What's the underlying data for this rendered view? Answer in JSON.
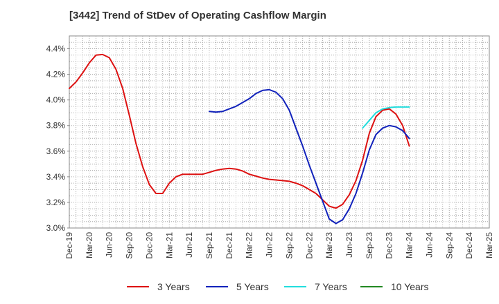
{
  "chart_data": {
    "type": "line",
    "title": "[3442]  Trend of StDev of Operating Cashflow Margin",
    "xlabel": "",
    "ylabel": "",
    "x_ticks": [
      "Dec-19",
      "Mar-20",
      "Jun-20",
      "Sep-20",
      "Dec-20",
      "Mar-21",
      "Jun-21",
      "Sep-21",
      "Dec-21",
      "Mar-22",
      "Jun-22",
      "Sep-22",
      "Dec-22",
      "Mar-23",
      "Jun-23",
      "Sep-23",
      "Dec-23",
      "Mar-24",
      "Jun-24",
      "Sep-24",
      "Dec-24",
      "Mar-25"
    ],
    "y_ticks": [
      "3.0%",
      "3.2%",
      "3.4%",
      "3.6%",
      "3.8%",
      "4.0%",
      "4.2%",
      "4.4%"
    ],
    "ylim": [
      3.0,
      4.5
    ],
    "grid": true,
    "legend_position": "bottom",
    "series": [
      {
        "name": "3 Years",
        "color": "#dd1111",
        "x": [
          "2019-12",
          "2020-01",
          "2020-02",
          "2020-03",
          "2020-04",
          "2020-05",
          "2020-06",
          "2020-07",
          "2020-08",
          "2020-09",
          "2020-10",
          "2020-11",
          "2020-12",
          "2021-01",
          "2021-02",
          "2021-03",
          "2021-04",
          "2021-05",
          "2021-06",
          "2021-07",
          "2021-08",
          "2021-09",
          "2021-10",
          "2021-11",
          "2021-12",
          "2022-01",
          "2022-02",
          "2022-03",
          "2022-04",
          "2022-05",
          "2022-06",
          "2022-07",
          "2022-08",
          "2022-09",
          "2022-10",
          "2022-11",
          "2022-12",
          "2023-01",
          "2023-02",
          "2023-03",
          "2023-04",
          "2023-05",
          "2023-06",
          "2023-07",
          "2023-08",
          "2023-09",
          "2023-10",
          "2023-11",
          "2023-12",
          "2024-01",
          "2024-02",
          "2024-03"
        ],
        "values": [
          4.09,
          4.14,
          4.21,
          4.29,
          4.35,
          4.355,
          4.33,
          4.24,
          4.09,
          3.88,
          3.66,
          3.48,
          3.34,
          3.27,
          3.27,
          3.35,
          3.4,
          3.42,
          3.42,
          3.42,
          3.42,
          3.435,
          3.45,
          3.46,
          3.465,
          3.46,
          3.445,
          3.42,
          3.405,
          3.39,
          3.38,
          3.375,
          3.37,
          3.365,
          3.35,
          3.33,
          3.3,
          3.27,
          3.22,
          3.17,
          3.155,
          3.185,
          3.26,
          3.37,
          3.53,
          3.74,
          3.87,
          3.92,
          3.93,
          3.89,
          3.8,
          3.64
        ]
      },
      {
        "name": "5 Years",
        "color": "#1122bb",
        "x": [
          "2021-09",
          "2021-10",
          "2021-11",
          "2021-12",
          "2022-01",
          "2022-02",
          "2022-03",
          "2022-04",
          "2022-05",
          "2022-06",
          "2022-07",
          "2022-08",
          "2022-09",
          "2022-10",
          "2022-11",
          "2022-12",
          "2023-01",
          "2023-02",
          "2023-03",
          "2023-04",
          "2023-05",
          "2023-06",
          "2023-07",
          "2023-08",
          "2023-09",
          "2023-10",
          "2023-11",
          "2023-12",
          "2024-01",
          "2024-02",
          "2024-03"
        ],
        "values": [
          3.91,
          3.905,
          3.91,
          3.93,
          3.95,
          3.98,
          4.01,
          4.05,
          4.075,
          4.08,
          4.06,
          4.01,
          3.92,
          3.78,
          3.64,
          3.49,
          3.35,
          3.21,
          3.07,
          3.035,
          3.065,
          3.15,
          3.27,
          3.43,
          3.61,
          3.73,
          3.78,
          3.8,
          3.79,
          3.76,
          3.7
        ]
      },
      {
        "name": "7 Years",
        "color": "#22dddd",
        "x": [
          "2023-08",
          "2023-09",
          "2023-10",
          "2023-11",
          "2023-12",
          "2024-01",
          "2024-02",
          "2024-03"
        ],
        "values": [
          3.78,
          3.84,
          3.9,
          3.93,
          3.94,
          3.945,
          3.945,
          3.945
        ]
      },
      {
        "name": "10 Years",
        "color": "#228822",
        "x": [],
        "values": []
      }
    ]
  }
}
